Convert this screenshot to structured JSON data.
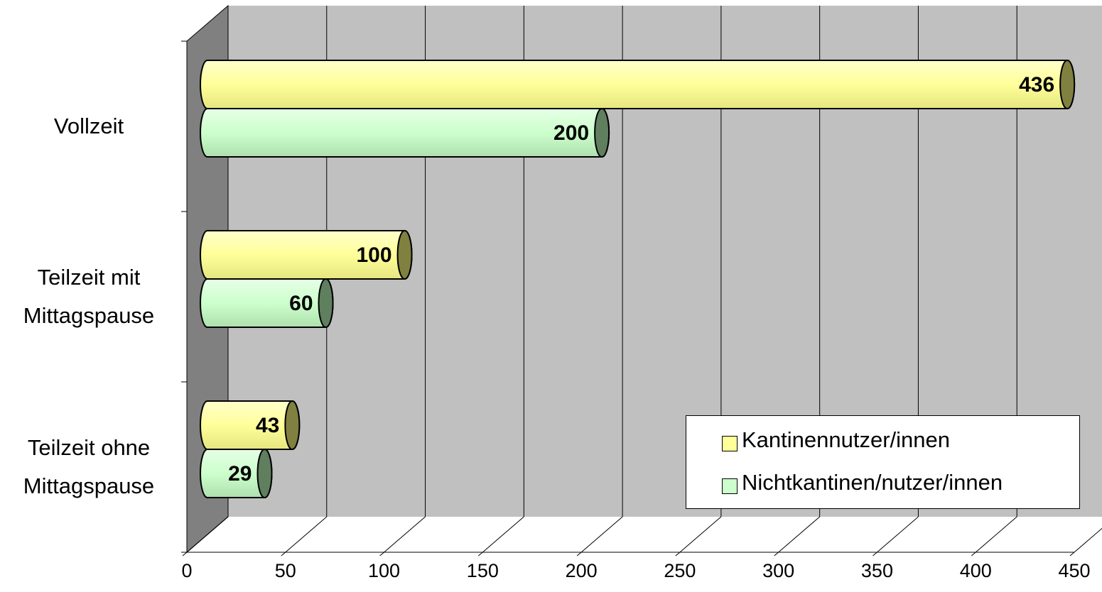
{
  "chart_data": {
    "type": "bar3d",
    "categories": [
      "Vollzeit",
      "Teilzeit mit\nMittagspause",
      "Teilzeit ohne\nMittagspause"
    ],
    "series": [
      {
        "name": "Kantinennutzer/innen",
        "color": "#ffff99",
        "values": [
          436,
          100,
          43
        ]
      },
      {
        "name": "Nichtkantinen/nutzer/innen",
        "color": "#ccffcc",
        "values": [
          200,
          60,
          29
        ]
      }
    ],
    "xlim": [
      0,
      450
    ],
    "xticks": [
      0,
      50,
      100,
      150,
      200,
      250,
      300,
      350,
      400,
      450
    ],
    "grid": true,
    "legend": "bottom-right"
  }
}
